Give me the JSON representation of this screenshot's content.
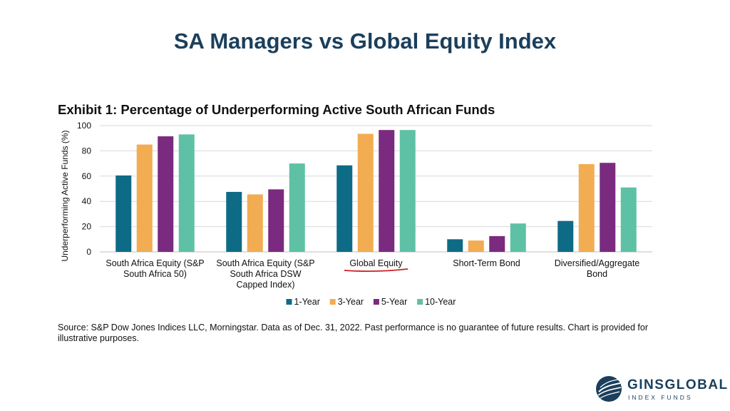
{
  "slide": {
    "title": "SA Managers vs Global Equity Index"
  },
  "exhibit": {
    "title": "Exhibit 1: Percentage of Underperforming Active South African Funds"
  },
  "chart_data": {
    "type": "bar",
    "title": "Exhibit 1: Percentage of Underperforming Active South African Funds",
    "ylabel": "Underperforming Active Funds (%)",
    "xlabel": "",
    "ylim": [
      0,
      100
    ],
    "yticks": [
      0,
      20,
      40,
      60,
      80,
      100
    ],
    "grid": true,
    "legend": "bottom",
    "categories": [
      [
        "South Africa Equity (S&P",
        "South Africa 50)"
      ],
      [
        "South Africa Equity (S&P",
        "South Africa DSW",
        "Capped Index)"
      ],
      [
        "Global Equity"
      ],
      [
        "Short-Term Bond"
      ],
      [
        "Diversified/Aggregate",
        "Bond"
      ]
    ],
    "highlighted_category": 2,
    "series": [
      {
        "name": "1-Year",
        "color": "#0e6b85",
        "values": [
          60.5,
          47.5,
          68.5,
          10.0,
          24.5
        ]
      },
      {
        "name": "3-Year",
        "color": "#f2ac52",
        "values": [
          85.0,
          45.5,
          93.5,
          9.0,
          69.5
        ]
      },
      {
        "name": "5-Year",
        "color": "#7a2a7f",
        "values": [
          91.5,
          49.5,
          96.5,
          12.5,
          70.5
        ]
      },
      {
        "name": "10-Year",
        "color": "#5ec1a5",
        "values": [
          93.0,
          70.0,
          96.5,
          22.5,
          51.0
        ]
      }
    ]
  },
  "source": {
    "text": "Source: S&P Dow Jones Indices LLC, Morningstar.  Data as of Dec. 31, 2022.  Past performance is no guarantee of future results.  Chart is provided for illustrative purposes."
  },
  "logo": {
    "name": "GINSGLOBAL",
    "subtitle": "INDEX FUNDS"
  },
  "colors": {
    "title": "#1b3f5c",
    "highlight_underline": "#cc1f24",
    "gridline": "#d9d9d9"
  }
}
